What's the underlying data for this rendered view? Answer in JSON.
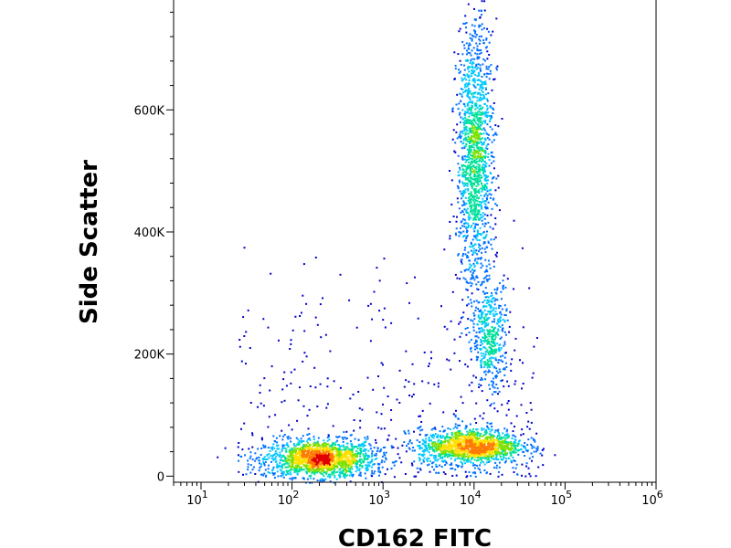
{
  "chart_data": {
    "type": "scatter",
    "title": "",
    "xlabel": "CD162 FITC",
    "ylabel": "Side Scatter",
    "x_scale": "log",
    "xlim": [
      5,
      1000000
    ],
    "ylim": [
      -10000,
      780000
    ],
    "grid": false,
    "x_ticks": [
      {
        "value": 10,
        "base": "10",
        "exp": "1"
      },
      {
        "value": 100,
        "base": "10",
        "exp": "2"
      },
      {
        "value": 1000,
        "base": "10",
        "exp": "3"
      },
      {
        "value": 10000,
        "base": "10",
        "exp": "4"
      },
      {
        "value": 100000,
        "base": "10",
        "exp": "5"
      },
      {
        "value": 1000000,
        "base": "10",
        "exp": "6"
      }
    ],
    "y_ticks": [
      {
        "value": 0,
        "label": "0"
      },
      {
        "value": 200000,
        "label": "200K"
      },
      {
        "value": 400000,
        "label": "400K"
      },
      {
        "value": 600000,
        "label": "600K"
      }
    ],
    "colormap": [
      "#0000cc",
      "#0070ff",
      "#00c8ff",
      "#00e09a",
      "#7ee000",
      "#ffe000",
      "#ff7a00",
      "#e00000"
    ],
    "populations": [
      {
        "x_center": 200,
        "y_center": 30000,
        "x_spread_log": 0.3,
        "y_spread": 15000,
        "events": 1500
      },
      {
        "x_center": 9000,
        "y_center": 50000,
        "x_spread_log": 0.28,
        "y_spread": 14000,
        "events": 1300
      },
      {
        "x_center": 10000,
        "y_center": 520000,
        "x_spread_log": 0.1,
        "y_spread": 110000,
        "events": 1500
      },
      {
        "x_center": 15000,
        "y_center": 230000,
        "x_spread_log": 0.1,
        "y_spread": 45000,
        "events": 450
      }
    ]
  }
}
